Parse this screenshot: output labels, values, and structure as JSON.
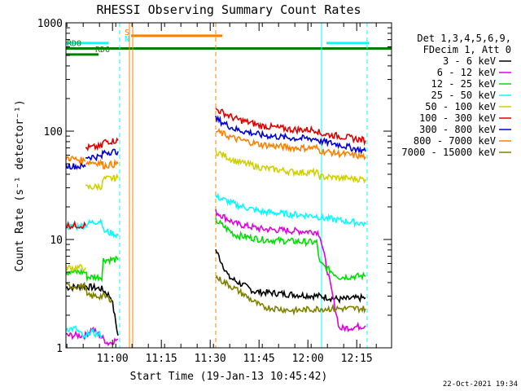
{
  "chart_data": {
    "type": "line",
    "title": "RHESSI Observing Summary Count Rates",
    "xlabel": "Start Time (19-Jan-13 10:45:42)",
    "ylabel": "Count Rate (s⁻¹ detector⁻¹)",
    "yscale": "log",
    "ylim": [
      1,
      1000
    ],
    "xlim_minutes": [
      0,
      100
    ],
    "y_ticks": [
      {
        "value": 1,
        "label": "1"
      },
      {
        "value": 10,
        "label": "10"
      },
      {
        "value": 100,
        "label": "100"
      },
      {
        "value": 1000,
        "label": "1000"
      }
    ],
    "x_ticks": [
      {
        "value": 14.3,
        "label": "11:00"
      },
      {
        "value": 29.3,
        "label": "11:15"
      },
      {
        "value": 44.3,
        "label": "11:30"
      },
      {
        "value": 59.3,
        "label": "11:45"
      },
      {
        "value": 74.3,
        "label": "12:00"
      },
      {
        "value": 89.3,
        "label": "12:15"
      }
    ],
    "legend_header": [
      "Det 1,3,4,5,6,9,",
      "FDecim 1, Att 0"
    ],
    "legend_position": "right",
    "series": [
      {
        "name": "3 - 6 keV",
        "color": "#000000",
        "segments": [
          [
            [
              0,
              3.6
            ],
            [
              6,
              3.7
            ],
            [
              11,
              3.5
            ],
            [
              14,
              2.9
            ],
            [
              16,
              1.3
            ]
          ],
          [
            [
              46,
              8
            ],
            [
              50,
              4.5
            ],
            [
              58,
              3.3
            ],
            [
              70,
              3.1
            ],
            [
              78,
              3.0
            ],
            [
              84,
              2.8
            ],
            [
              92,
              2.9
            ]
          ]
        ]
      },
      {
        "name": "6 - 12 keV",
        "color": "#e000e0",
        "segments": [
          [
            [
              0,
              1.3
            ],
            [
              6,
              1.3
            ],
            [
              8,
              1.5
            ],
            [
              13,
              1.1
            ],
            [
              16,
              1.2
            ]
          ],
          [
            [
              46,
              18
            ],
            [
              52,
              14
            ],
            [
              60,
              12.5
            ],
            [
              70,
              12
            ],
            [
              77,
              11.8
            ],
            [
              78,
              11
            ],
            [
              84,
              1.5
            ],
            [
              92,
              1.6
            ]
          ]
        ]
      },
      {
        "name": "12 - 25 keV",
        "color": "#00e000",
        "segments": [
          [
            [
              0,
              5.0
            ],
            [
              6,
              5.0
            ],
            [
              6.5,
              4.5
            ],
            [
              11,
              4.5
            ],
            [
              11.5,
              6.5
            ],
            [
              16,
              6.5
            ]
          ],
          [
            [
              46,
              15
            ],
            [
              52,
              11
            ],
            [
              60,
              10
            ],
            [
              70,
              9.6
            ],
            [
              77,
              9.4
            ],
            [
              78,
              6
            ],
            [
              84,
              4.5
            ],
            [
              92,
              4.6
            ]
          ]
        ]
      },
      {
        "name": "25 - 50 keV",
        "color": "#00ffff",
        "segments": [
          [
            [
              0,
              1.5
            ],
            [
              3,
              1.5
            ],
            [
              6,
              1.2
            ],
            [
              7,
              1.4
            ],
            [
              11,
              1.3
            ]
          ],
          [
            [
              0,
              13
            ],
            [
              6,
              13.5
            ],
            [
              6.5,
              14
            ],
            [
              11,
              15
            ],
            [
              11.5,
              12
            ],
            [
              16,
              11
            ]
          ],
          [
            [
              46,
              25
            ],
            [
              52,
              21
            ],
            [
              60,
              18
            ],
            [
              70,
              17
            ],
            [
              77,
              16.5
            ],
            [
              78,
              16
            ],
            [
              84,
              15
            ],
            [
              92,
              14
            ]
          ]
        ]
      },
      {
        "name": "50 - 100 keV",
        "color": "#d0d000",
        "segments": [
          [
            [
              0,
              5.5
            ],
            [
              6,
              5.5
            ]
          ],
          [
            [
              6,
              30
            ],
            [
              11,
              31
            ],
            [
              11.5,
              36
            ],
            [
              16,
              37
            ]
          ],
          [
            [
              46,
              65
            ],
            [
              52,
              53
            ],
            [
              60,
              46
            ],
            [
              70,
              42
            ],
            [
              77,
              41.5
            ],
            [
              78,
              38
            ],
            [
              84,
              37
            ],
            [
              92,
              36
            ]
          ]
        ]
      },
      {
        "name": "100 - 300 keV",
        "color": "#e00000",
        "segments": [
          [
            [
              0,
              13.5
            ],
            [
              6,
              13.5
            ]
          ],
          [
            [
              6,
              70
            ],
            [
              11,
              72
            ],
            [
              11.5,
              80
            ],
            [
              16,
              82
            ]
          ],
          [
            [
              46,
              160
            ],
            [
              52,
              130
            ],
            [
              60,
              112
            ],
            [
              70,
              103
            ],
            [
              77,
              103
            ],
            [
              78,
              95
            ],
            [
              84,
              90
            ],
            [
              92,
              82
            ]
          ]
        ]
      },
      {
        "name": "300 - 800 keV",
        "color": "#0000e0",
        "segments": [
          [
            [
              0,
              48
            ],
            [
              6,
              47
            ]
          ],
          [
            [
              6,
              58
            ],
            [
              11,
              58
            ],
            [
              11.5,
              64
            ],
            [
              16,
              65
            ]
          ],
          [
            [
              46,
              130
            ],
            [
              52,
              104
            ],
            [
              60,
              92
            ],
            [
              70,
              86
            ],
            [
              77,
              85
            ],
            [
              78,
              81
            ],
            [
              84,
              75
            ],
            [
              92,
              65
            ]
          ]
        ]
      },
      {
        "name": "800 - 7000 keV",
        "color": "#ff8000",
        "segments": [
          [
            [
              0,
              57
            ],
            [
              6,
              53
            ]
          ],
          [
            [
              6,
              52
            ],
            [
              11,
              51
            ],
            [
              11.5,
              48
            ],
            [
              16,
              50
            ]
          ],
          [
            [
              46,
              100
            ],
            [
              52,
              85
            ],
            [
              60,
              75
            ],
            [
              70,
              70
            ],
            [
              77,
              70
            ],
            [
              78,
              66
            ],
            [
              84,
              62
            ],
            [
              92,
              58
            ]
          ]
        ]
      },
      {
        "name": "7000 - 15000 keV",
        "color": "#808000",
        "segments": [
          [
            [
              0,
              3.7
            ],
            [
              6,
              3.7
            ],
            [
              6.5,
              3.0
            ],
            [
              11,
              3.0
            ],
            [
              11.5,
              3.0
            ],
            [
              14,
              2.8
            ]
          ],
          [
            [
              46,
              4.5
            ],
            [
              52,
              3.5
            ],
            [
              60,
              2.4
            ],
            [
              70,
              2.2
            ],
            [
              78,
              2.3
            ],
            [
              84,
              2.3
            ],
            [
              92,
              2.3
            ]
          ]
        ]
      }
    ],
    "flag_bars": [
      {
        "label": "",
        "color": "#00ffff",
        "y": 650,
        "segments": [
          [
            0,
            13
          ],
          [
            80,
            93
          ]
        ]
      },
      {
        "label": "",
        "color": "#ff8000",
        "y": 760,
        "segments": [
          [
            20,
            48
          ]
        ]
      },
      {
        "label": "RD0",
        "color": "#008000",
        "y": 580,
        "segments": [
          [
            0,
            100
          ]
        ]
      },
      {
        "label": "RD6",
        "color": "#008000",
        "y": 510,
        "segments": [
          [
            0,
            10
          ]
        ]
      }
    ],
    "markers": [
      {
        "label": "S",
        "color": "#ff8000",
        "x": 19.5
      },
      {
        "label": "N",
        "color": "#00ffff",
        "x": 19.5
      }
    ],
    "vertical_lines": [
      {
        "x": 19.5,
        "color": "#ff8000",
        "style": "solid"
      },
      {
        "x": 20.5,
        "color": "#ff8000",
        "style": "solid"
      },
      {
        "x": 46,
        "color": "#ff8000",
        "style": "dashed"
      },
      {
        "x": 16.5,
        "color": "#00ffff",
        "style": "dashed"
      },
      {
        "x": 78.5,
        "color": "#00ffff",
        "style": "solid"
      },
      {
        "x": 92.5,
        "color": "#00ffff",
        "style": "dashed"
      }
    ]
  },
  "footer": {
    "date": "22-Oct-2021 19:34"
  }
}
